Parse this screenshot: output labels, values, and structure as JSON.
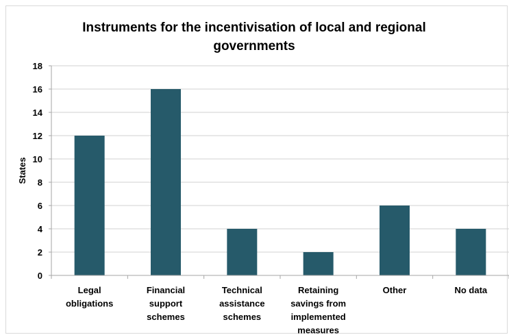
{
  "chart_data": {
    "type": "bar",
    "title_lines": [
      "Instruments for the incentivisation of local and regional",
      "governments"
    ],
    "ylabel": "States",
    "xlabel": "",
    "ylim": [
      0,
      18
    ],
    "yticks": [
      "0",
      "2",
      "4",
      "6",
      "8",
      "10",
      "12",
      "14",
      "16",
      "18"
    ],
    "grid": true,
    "legend": "none",
    "categories": [
      [
        "Legal",
        "obligations"
      ],
      [
        "Financial",
        "support",
        "schemes"
      ],
      [
        "Technical",
        "assistance",
        "schemes"
      ],
      [
        "Retaining",
        "savings from",
        "implemented",
        "measures"
      ],
      [
        "Other"
      ],
      [
        "No data"
      ]
    ],
    "values": [
      12,
      16,
      4,
      2,
      6,
      4
    ],
    "bar_color": "#265a6a"
  }
}
